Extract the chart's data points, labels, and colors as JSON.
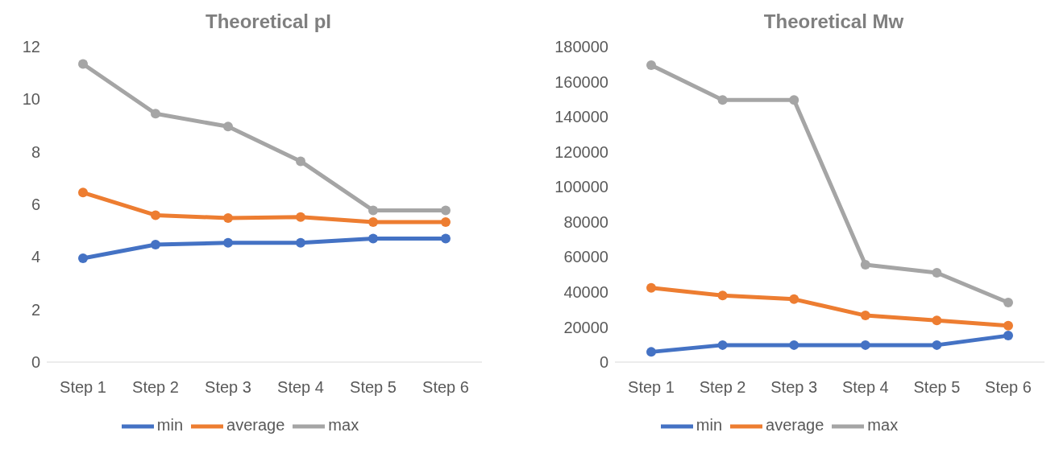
{
  "chart_data": [
    {
      "type": "line",
      "title": "Theoretical pI",
      "categories": [
        "Step 1",
        "Step 2",
        "Step 3",
        "Step 4",
        "Step 5",
        "Step 6"
      ],
      "ylim": [
        0,
        12
      ],
      "yticks": [
        0,
        2,
        4,
        6,
        8,
        10,
        12
      ],
      "grid": false,
      "legend": "bottom",
      "marker": "circle",
      "series": [
        {
          "name": "min",
          "color": "#4472c4",
          "values": [
            3.95,
            4.47,
            4.54,
            4.54,
            4.7,
            4.7
          ]
        },
        {
          "name": "average",
          "color": "#ed7d31",
          "values": [
            6.45,
            5.59,
            5.48,
            5.52,
            5.33,
            5.33
          ]
        },
        {
          "name": "max",
          "color": "#a5a5a5",
          "values": [
            11.34,
            9.45,
            8.96,
            7.64,
            5.77,
            5.77
          ]
        }
      ]
    },
    {
      "type": "line",
      "title": "Theoretical Mw",
      "categories": [
        "Step 1",
        "Step 2",
        "Step 3",
        "Step 4",
        "Step 5",
        "Step 6"
      ],
      "ylim": [
        0,
        180000
      ],
      "yticks": [
        0,
        20000,
        40000,
        60000,
        80000,
        100000,
        120000,
        140000,
        160000,
        180000
      ],
      "grid": false,
      "legend": "bottom",
      "marker": "circle",
      "series": [
        {
          "name": "min",
          "color": "#4472c4",
          "values": [
            5800,
            9700,
            9700,
            9700,
            9700,
            15100
          ]
        },
        {
          "name": "average",
          "color": "#ed7d31",
          "values": [
            42400,
            38000,
            35900,
            26600,
            23800,
            20800
          ]
        },
        {
          "name": "max",
          "color": "#a5a5a5",
          "values": [
            169400,
            149600,
            149600,
            55600,
            51000,
            34000
          ]
        }
      ]
    }
  ]
}
